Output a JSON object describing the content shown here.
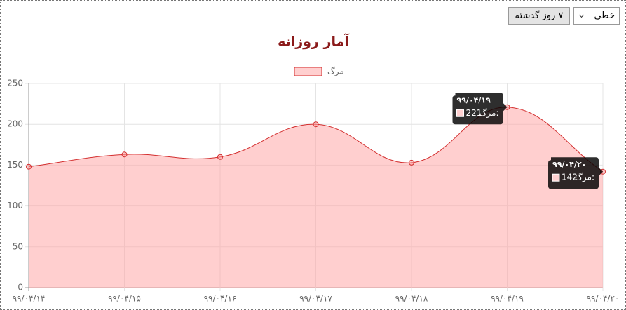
{
  "controls": {
    "chart_type": "خطی",
    "range": "۷ روز گذشته"
  },
  "chart_data": {
    "type": "line",
    "title": "آمار روزانه",
    "categories": [
      "۹۹/۰۴/۱۴",
      "۹۹/۰۴/۱۵",
      "۹۹/۰۴/۱۶",
      "۹۹/۰۴/۱۷",
      "۹۹/۰۴/۱۸",
      "۹۹/۰۴/۱۹",
      "۹۹/۰۴/۲۰"
    ],
    "series": [
      {
        "name": "مرگ",
        "color": "#d32f2f",
        "fill": "rgba(255,160,160,0.5)",
        "values": [
          148,
          163,
          160,
          200,
          153,
          221,
          142
        ]
      }
    ],
    "ylim": [
      0,
      250
    ],
    "yticks": [
      0,
      50,
      100,
      150,
      200,
      250
    ],
    "grid": true,
    "legend": "top",
    "tooltip_label": "مرگ:",
    "active_tooltips": [
      5,
      6
    ]
  }
}
